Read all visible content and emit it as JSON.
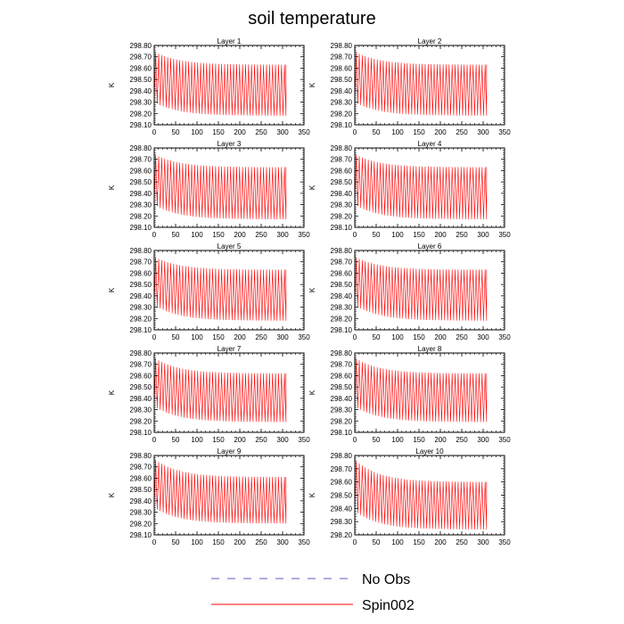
{
  "chart_data": {
    "type": "line",
    "title": "soil temperature",
    "ylabel": "K",
    "xlim": [
      0,
      350
    ],
    "x_ticks": [
      0,
      50,
      100,
      150,
      200,
      250,
      300,
      350
    ],
    "legend": {
      "placement": "bottom-center",
      "entries": [
        {
          "name": "No Obs",
          "color": "#5b5bc0",
          "style": "dashed"
        },
        {
          "name": "Spin002",
          "color": "#ff0000",
          "style": "solid"
        }
      ]
    },
    "panels": [
      {
        "name": "Layer 1",
        "ylim": [
          298.1,
          298.8
        ],
        "yticks": [
          "298.10",
          "298.20",
          "298.30",
          "298.40",
          "298.50",
          "298.60",
          "298.70",
          "298.80"
        ],
        "series": [
          {
            "name": "Spin002",
            "x_range": [
              0,
              308
            ],
            "oscillation_period": 7,
            "upper_start": 298.74,
            "upper_end": 298.63,
            "lower_start": 298.3,
            "lower_end": 298.18
          }
        ]
      },
      {
        "name": "Layer 2",
        "ylim": [
          298.1,
          298.8
        ],
        "yticks": [
          "298.10",
          "298.20",
          "298.30",
          "298.40",
          "298.50",
          "298.60",
          "298.70",
          "298.80"
        ],
        "series": [
          {
            "name": "Spin002",
            "x_range": [
              0,
              308
            ],
            "oscillation_period": 7,
            "upper_start": 298.74,
            "upper_end": 298.63,
            "lower_start": 298.3,
            "lower_end": 298.18
          }
        ]
      },
      {
        "name": "Layer 3",
        "ylim": [
          298.1,
          298.8
        ],
        "yticks": [
          "298.10",
          "298.20",
          "298.30",
          "298.40",
          "298.50",
          "298.60",
          "298.70",
          "298.80"
        ],
        "series": [
          {
            "name": "Spin002",
            "x_range": [
              0,
              308
            ],
            "oscillation_period": 7,
            "upper_start": 298.74,
            "upper_end": 298.63,
            "lower_start": 298.3,
            "lower_end": 298.17
          }
        ]
      },
      {
        "name": "Layer 4",
        "ylim": [
          298.1,
          298.8
        ],
        "yticks": [
          "298.10",
          "298.20",
          "298.30",
          "298.40",
          "298.50",
          "298.60",
          "298.70",
          "298.80"
        ],
        "series": [
          {
            "name": "Spin002",
            "x_range": [
              0,
              308
            ],
            "oscillation_period": 7,
            "upper_start": 298.74,
            "upper_end": 298.63,
            "lower_start": 298.3,
            "lower_end": 298.17
          }
        ]
      },
      {
        "name": "Layer 5",
        "ylim": [
          298.1,
          298.8
        ],
        "yticks": [
          "298.10",
          "298.20",
          "298.30",
          "298.40",
          "298.50",
          "298.60",
          "298.70",
          "298.80"
        ],
        "series": [
          {
            "name": "Spin002",
            "x_range": [
              0,
              308
            ],
            "oscillation_period": 7,
            "upper_start": 298.74,
            "upper_end": 298.63,
            "lower_start": 298.32,
            "lower_end": 298.18
          }
        ]
      },
      {
        "name": "Layer 6",
        "ylim": [
          298.1,
          298.8
        ],
        "yticks": [
          "298.10",
          "298.20",
          "298.30",
          "298.40",
          "298.50",
          "298.60",
          "298.70",
          "298.80"
        ],
        "series": [
          {
            "name": "Spin002",
            "x_range": [
              0,
              308
            ],
            "oscillation_period": 7,
            "upper_start": 298.74,
            "upper_end": 298.63,
            "lower_start": 298.32,
            "lower_end": 298.18
          }
        ]
      },
      {
        "name": "Layer 7",
        "ylim": [
          298.1,
          298.8
        ],
        "yticks": [
          "298.10",
          "298.20",
          "298.30",
          "298.40",
          "298.50",
          "298.60",
          "298.70",
          "298.80"
        ],
        "series": [
          {
            "name": "Spin002",
            "x_range": [
              0,
              308
            ],
            "oscillation_period": 7,
            "upper_start": 298.75,
            "upper_end": 298.62,
            "lower_start": 298.33,
            "lower_end": 298.19
          }
        ]
      },
      {
        "name": "Layer 8",
        "ylim": [
          298.1,
          298.8
        ],
        "yticks": [
          "298.10",
          "298.20",
          "298.30",
          "298.40",
          "298.50",
          "298.60",
          "298.70",
          "298.80"
        ],
        "series": [
          {
            "name": "Spin002",
            "x_range": [
              0,
              308
            ],
            "oscillation_period": 7,
            "upper_start": 298.75,
            "upper_end": 298.62,
            "lower_start": 298.33,
            "lower_end": 298.19
          }
        ]
      },
      {
        "name": "Layer 9",
        "ylim": [
          298.1,
          298.8
        ],
        "yticks": [
          "298.10",
          "298.20",
          "298.30",
          "298.40",
          "298.50",
          "298.60",
          "298.70",
          "298.80"
        ],
        "series": [
          {
            "name": "Spin002",
            "x_range": [
              0,
              308
            ],
            "oscillation_period": 7,
            "upper_start": 298.76,
            "upper_end": 298.61,
            "lower_start": 298.34,
            "lower_end": 298.2
          }
        ]
      },
      {
        "name": "Layer 10",
        "ylim": [
          298.2,
          298.8
        ],
        "yticks": [
          "298.20",
          "298.30",
          "298.40",
          "298.50",
          "298.60",
          "298.70",
          "298.80"
        ],
        "series": [
          {
            "name": "Spin002",
            "x_range": [
              0,
              308
            ],
            "oscillation_period": 7,
            "upper_start": 298.76,
            "upper_end": 298.6,
            "lower_start": 298.38,
            "lower_end": 298.24
          }
        ]
      }
    ]
  }
}
